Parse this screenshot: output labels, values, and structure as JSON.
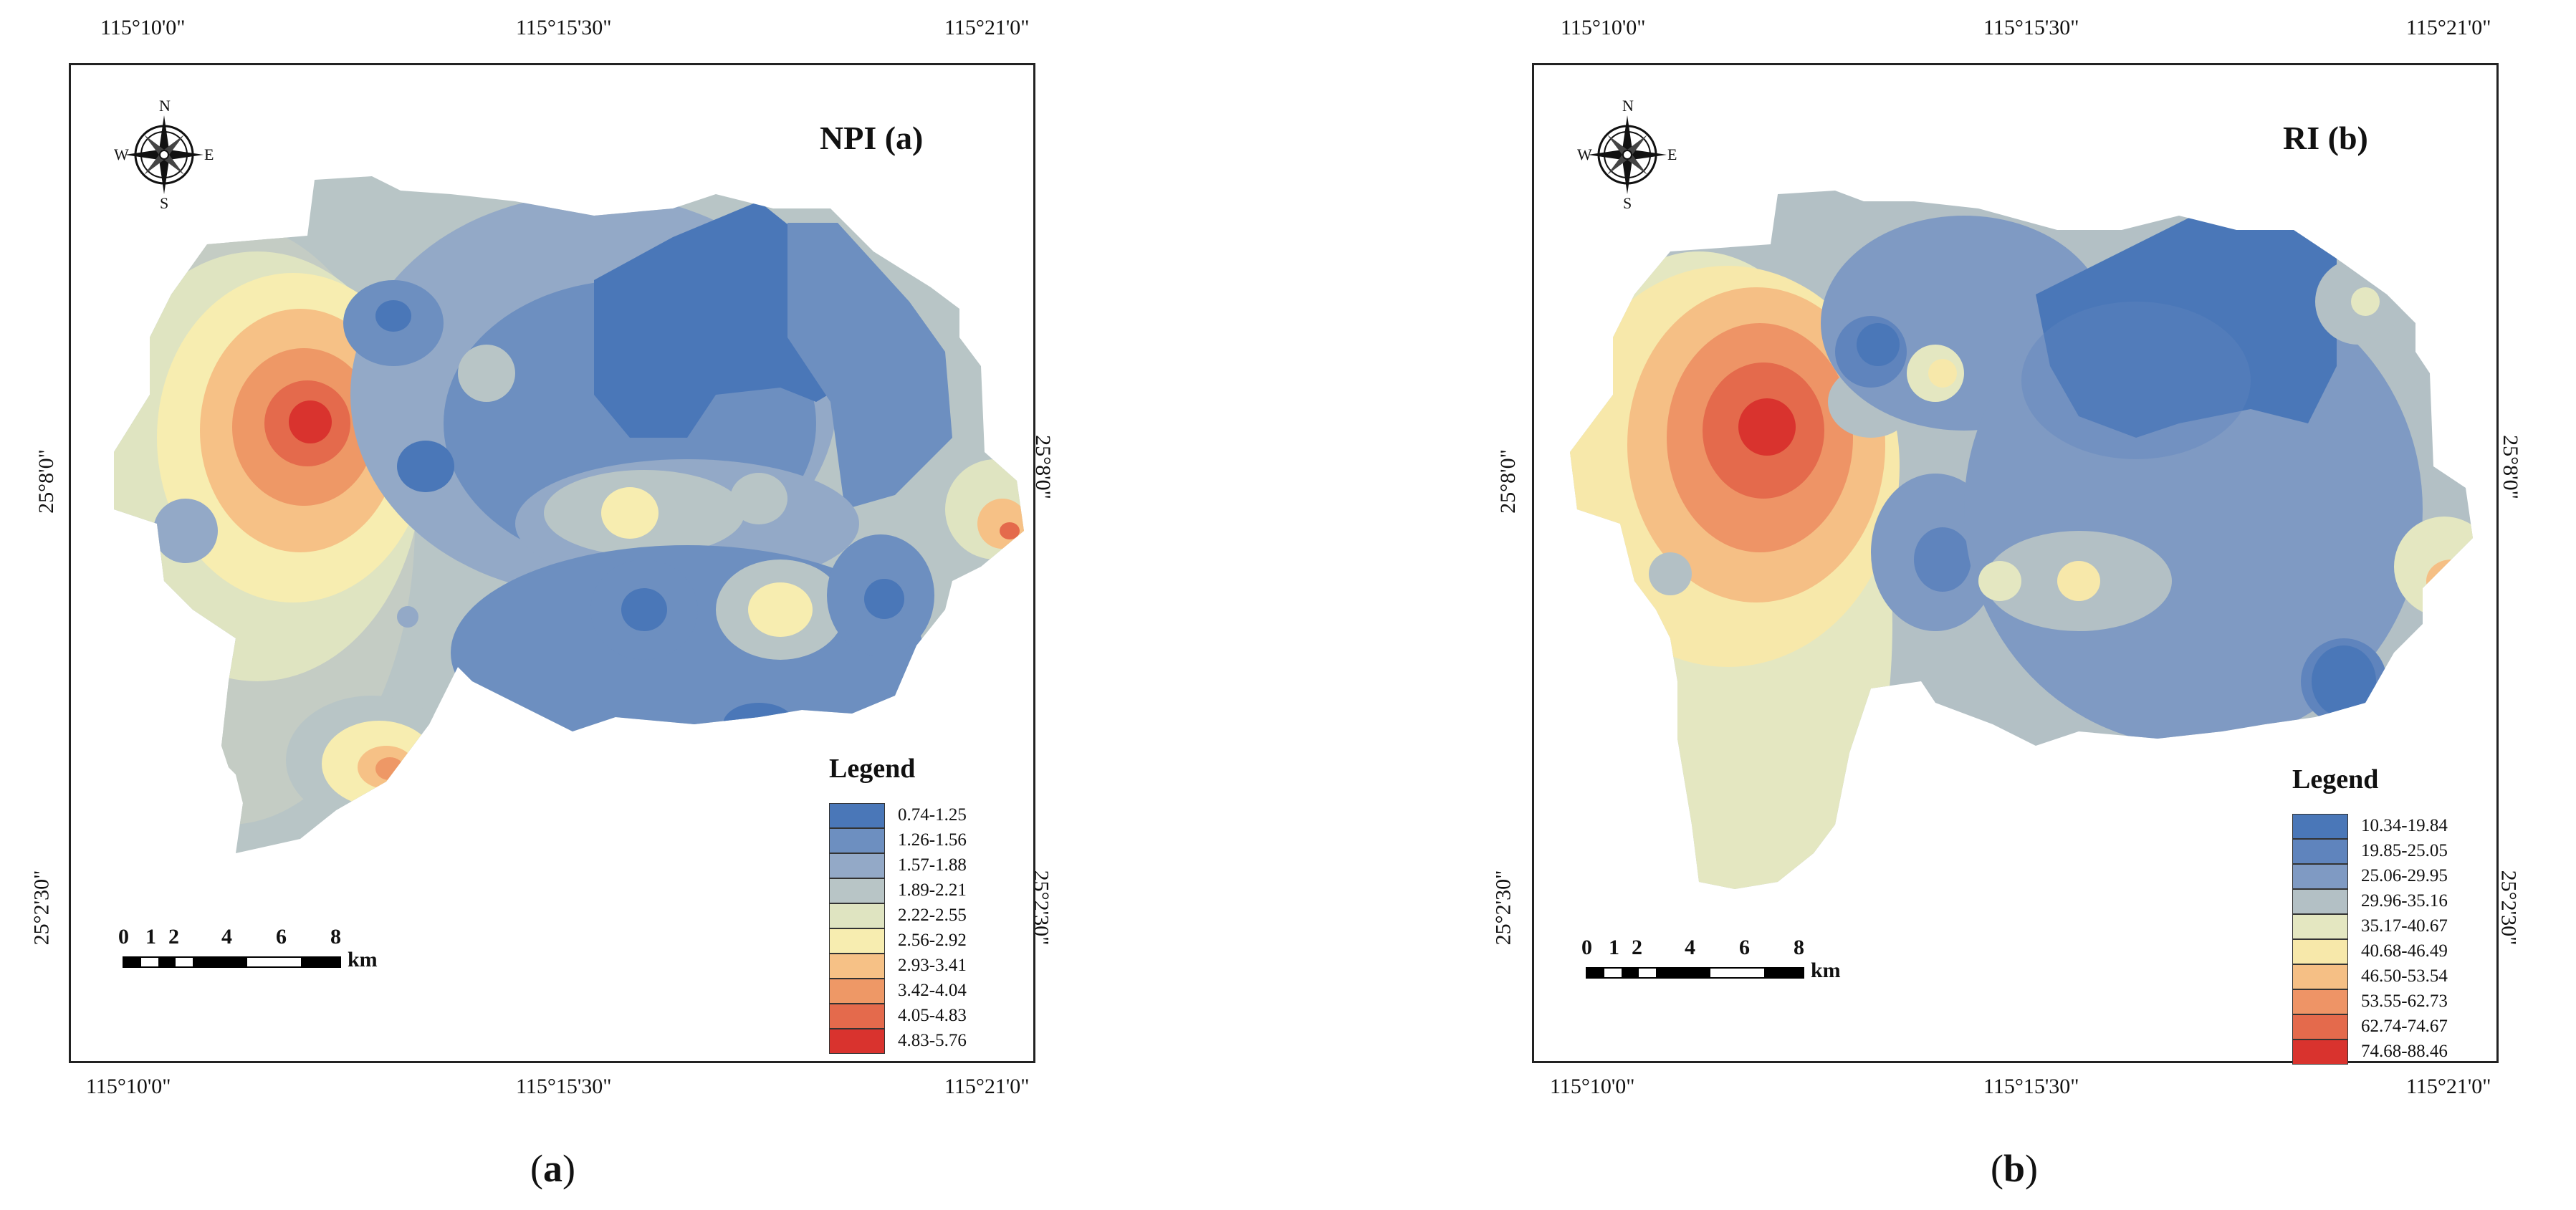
{
  "panels": [
    {
      "id": "a",
      "map_title": "NPI  (a)",
      "caption_open": "(",
      "caption_letter": "a",
      "caption_close": ")",
      "ticks": {
        "top": [
          "115°10'0\"",
          "115°15'30\"",
          "115°21'0\""
        ],
        "bottom": [
          "115°10'0\"",
          "115°15'30\"",
          "115°21'0\""
        ],
        "left": [
          "25°8'0\"",
          "25°2'30\""
        ],
        "right": [
          "25°8'0\"",
          "25°2'30\""
        ]
      },
      "compass": {
        "n": "N",
        "s": "S",
        "e": "E",
        "w": "W"
      },
      "scale": {
        "labels": [
          "0",
          "1",
          "2",
          "4",
          "6",
          "8"
        ],
        "unit": "km"
      },
      "legend": {
        "title": "Legend",
        "items": [
          {
            "label": "0.74-1.25",
            "color": "#4a77b8"
          },
          {
            "label": "1.26-1.56",
            "color": "#6d8fc0"
          },
          {
            "label": "1.57-1.88",
            "color": "#93a9c7"
          },
          {
            "label": "1.89-2.21",
            "color": "#b8c5c6"
          },
          {
            "label": "2.22-2.55",
            "color": "#dfe4c1"
          },
          {
            "label": "2.56-2.92",
            "color": "#f7edb0"
          },
          {
            "label": "2.93-3.41",
            "color": "#f6c186"
          },
          {
            "label": "3.42-4.04",
            "color": "#ee9866"
          },
          {
            "label": "4.05-4.83",
            "color": "#e46a4c"
          },
          {
            "label": "4.83-5.76",
            "color": "#d9332e"
          }
        ]
      }
    },
    {
      "id": "b",
      "map_title": "RI (b)",
      "caption_open": "(",
      "caption_letter": "b",
      "caption_close": ")",
      "ticks": {
        "top": [
          "115°10'0\"",
          "115°15'30\"",
          "115°21'0\""
        ],
        "bottom": [
          "115°10'0\"",
          "115°15'30\"",
          "115°21'0\""
        ],
        "left": [
          "25°8'0\"",
          "25°2'30\""
        ],
        "right": [
          "25°8'0\"",
          "25°2'30\""
        ]
      },
      "compass": {
        "n": "N",
        "s": "S",
        "e": "E",
        "w": "W"
      },
      "scale": {
        "labels": [
          "0",
          "1",
          "2",
          "4",
          "6",
          "8"
        ],
        "unit": "km"
      },
      "legend": {
        "title": "Legend",
        "items": [
          {
            "label": "10.34-19.84",
            "color": "#4a77b8"
          },
          {
            "label": "19.85-25.05",
            "color": "#5f84bd"
          },
          {
            "label": "25.06-29.95",
            "color": "#7f9ac3"
          },
          {
            "label": "29.96-35.16",
            "color": "#b3c0c5"
          },
          {
            "label": "35.17-40.67",
            "color": "#e4e7c1"
          },
          {
            "label": "40.68-46.49",
            "color": "#f7e8aa"
          },
          {
            "label": "46.50-53.54",
            "color": "#f5bf85"
          },
          {
            "label": "53.55-62.73",
            "color": "#ee9466"
          },
          {
            "label": "62.74-74.67",
            "color": "#e46a4c"
          },
          {
            "label": "74.68-88.46",
            "color": "#d9332e"
          }
        ]
      }
    }
  ]
}
